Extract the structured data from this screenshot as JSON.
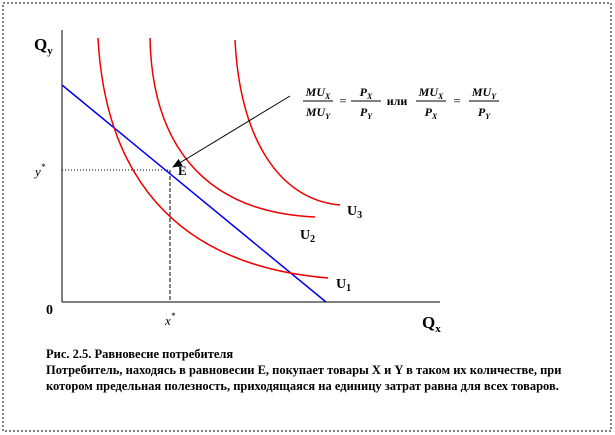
{
  "axes": {
    "y_label": {
      "main": "Q",
      "sub": "y"
    },
    "x_label": {
      "main": "Q",
      "sub": "x"
    },
    "origin": "0"
  },
  "equilibrium": {
    "label": "E",
    "x_label": {
      "main": "x",
      "sup": "*"
    },
    "y_label": {
      "main": "y",
      "sup": "*"
    }
  },
  "curves": [
    {
      "label": {
        "main": "U",
        "sub": "1"
      }
    },
    {
      "label": {
        "main": "U",
        "sub": "2"
      }
    },
    {
      "label": {
        "main": "U",
        "sub": "3"
      }
    }
  ],
  "formula": {
    "eq1": [
      {
        "num": {
          "main": "MU",
          "sub": "X"
        },
        "den": {
          "main": "MU",
          "sub": "Y"
        }
      },
      {
        "num": {
          "main": "P",
          "sub": "X"
        },
        "den": {
          "main": "P",
          "sub": "Y"
        }
      }
    ],
    "connector": "или",
    "eq2": [
      {
        "num": {
          "main": "MU",
          "sub": "X"
        },
        "den": {
          "main": "P",
          "sub": "X"
        }
      },
      {
        "num": {
          "main": "MU",
          "sub": "Y"
        },
        "den": {
          "main": "P",
          "sub": "Y"
        }
      }
    ],
    "equals": "="
  },
  "caption": {
    "title": "Рис. 2.5. Равновесие потребителя",
    "text": "Потребитель, находясь в равновесии E, покупает товары X и Y в таком их количестве, при котором предельная полезность, приходящаяся на единицу затрат равна для всех товаров."
  }
}
